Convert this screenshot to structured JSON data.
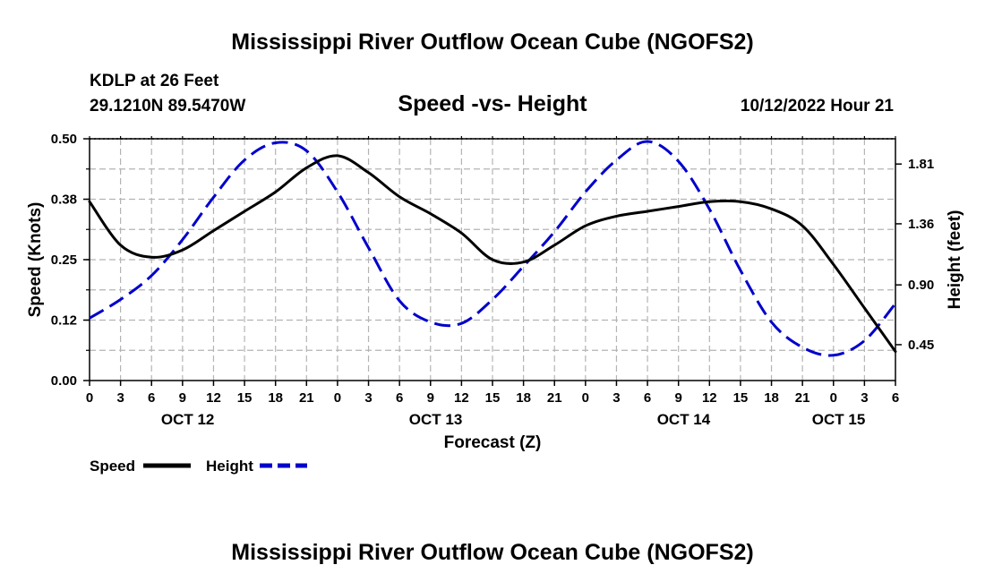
{
  "page": {
    "main_title": "Mississippi River Outflow Ocean Cube (NGOFS2)",
    "footer_title": "Mississippi River Outflow Ocean Cube (NGOFS2)"
  },
  "chart_data": {
    "type": "line",
    "title": "Speed -vs- Height",
    "station_line1": "KDLP at 26 Feet",
    "station_line2": "29.1210N  89.5470W",
    "timestamp": "10/12/2022 Hour 21",
    "xlabel": "Forecast (Z)",
    "ylabel_left": "Speed (Knots)",
    "ylabel_right": "Height (feet)",
    "x_unit": "hours from 0Z Oct 12",
    "xlim": [
      0,
      78
    ],
    "ylim_left": [
      0.0,
      0.5
    ],
    "ylim_right": [
      0.18,
      2.0
    ],
    "x_ticks": [
      0,
      3,
      6,
      9,
      12,
      15,
      18,
      21,
      24,
      27,
      30,
      33,
      36,
      39,
      42,
      45,
      48,
      51,
      54,
      57,
      60,
      63,
      66,
      69,
      72,
      75,
      78
    ],
    "x_tick_labels": [
      "0",
      "3",
      "6",
      "9",
      "12",
      "15",
      "18",
      "21",
      "0",
      "3",
      "6",
      "9",
      "12",
      "15",
      "18",
      "21",
      "0",
      "3",
      "6",
      "9",
      "12",
      "15",
      "18",
      "21",
      "0",
      "3",
      "6"
    ],
    "date_labels": [
      {
        "x": 9.5,
        "label": "OCT 12"
      },
      {
        "x": 33.5,
        "label": "OCT 13"
      },
      {
        "x": 57.5,
        "label": "OCT 14"
      },
      {
        "x": 72.5,
        "label": "OCT 15"
      }
    ],
    "y_left_ticks": [
      0.0,
      0.125,
      0.25,
      0.375,
      0.5
    ],
    "y_left_tick_labels": [
      "0.00",
      "0.12",
      "0.25",
      "0.38",
      "0.50"
    ],
    "y_right_ticks": [
      0.45,
      0.9,
      1.36,
      1.81
    ],
    "y_right_tick_labels": [
      "0.45",
      "0.90",
      "1.36",
      "1.81"
    ],
    "legend": [
      {
        "name": "Speed",
        "color": "#000000",
        "dash": "solid"
      },
      {
        "name": "Height",
        "color": "#0000cc",
        "dash": "dashed"
      }
    ],
    "series": [
      {
        "name": "Speed",
        "axis": "left",
        "color": "#000000",
        "x": [
          0,
          3,
          6,
          9,
          12,
          15,
          18,
          21,
          24,
          27,
          30,
          33,
          36,
          39,
          42,
          45,
          48,
          51,
          54,
          57,
          60,
          63,
          66,
          69,
          72,
          75,
          78
        ],
        "values": [
          0.37,
          0.28,
          0.255,
          0.27,
          0.31,
          0.35,
          0.39,
          0.44,
          0.465,
          0.43,
          0.38,
          0.345,
          0.305,
          0.25,
          0.245,
          0.28,
          0.32,
          0.34,
          0.35,
          0.36,
          0.37,
          0.37,
          0.355,
          0.32,
          0.24,
          0.15,
          0.06
        ]
      },
      {
        "name": "Height",
        "axis": "right",
        "color": "#0000cc",
        "x": [
          0,
          3,
          6,
          9,
          12,
          15,
          18,
          21,
          24,
          27,
          30,
          33,
          36,
          39,
          42,
          45,
          48,
          51,
          54,
          57,
          60,
          63,
          66,
          69,
          72,
          75,
          78
        ],
        "values": [
          0.65,
          0.79,
          0.97,
          1.24,
          1.56,
          1.84,
          1.97,
          1.91,
          1.6,
          1.18,
          0.78,
          0.62,
          0.61,
          0.79,
          1.04,
          1.3,
          1.6,
          1.84,
          1.98,
          1.83,
          1.47,
          1.01,
          0.62,
          0.43,
          0.37,
          0.48,
          0.76
        ]
      }
    ]
  }
}
